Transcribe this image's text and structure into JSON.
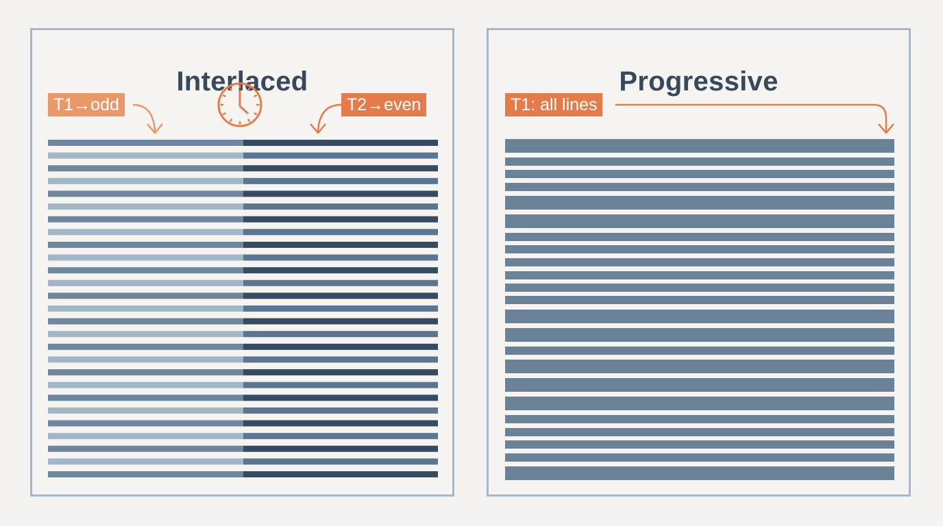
{
  "interlaced": {
    "title": "Interlaced",
    "tag_t1": "T1→odd",
    "tag_t2": "T2→even",
    "clock_icon": "clock-icon",
    "line_count": 27,
    "colors": {
      "left_light": "#a3b6c6",
      "left_dark": "#6f879d",
      "right_light": "#5b7690",
      "right_dark": "#364b61"
    }
  },
  "progressive": {
    "title": "Progressive",
    "tag_t1": "T1: all lines",
    "colors": {
      "line": "#6a8298"
    }
  },
  "colors": {
    "accent": "#e47b48",
    "panel_border": "#a7b7c7",
    "title": "#36495d",
    "background": "#f4f3ef"
  }
}
